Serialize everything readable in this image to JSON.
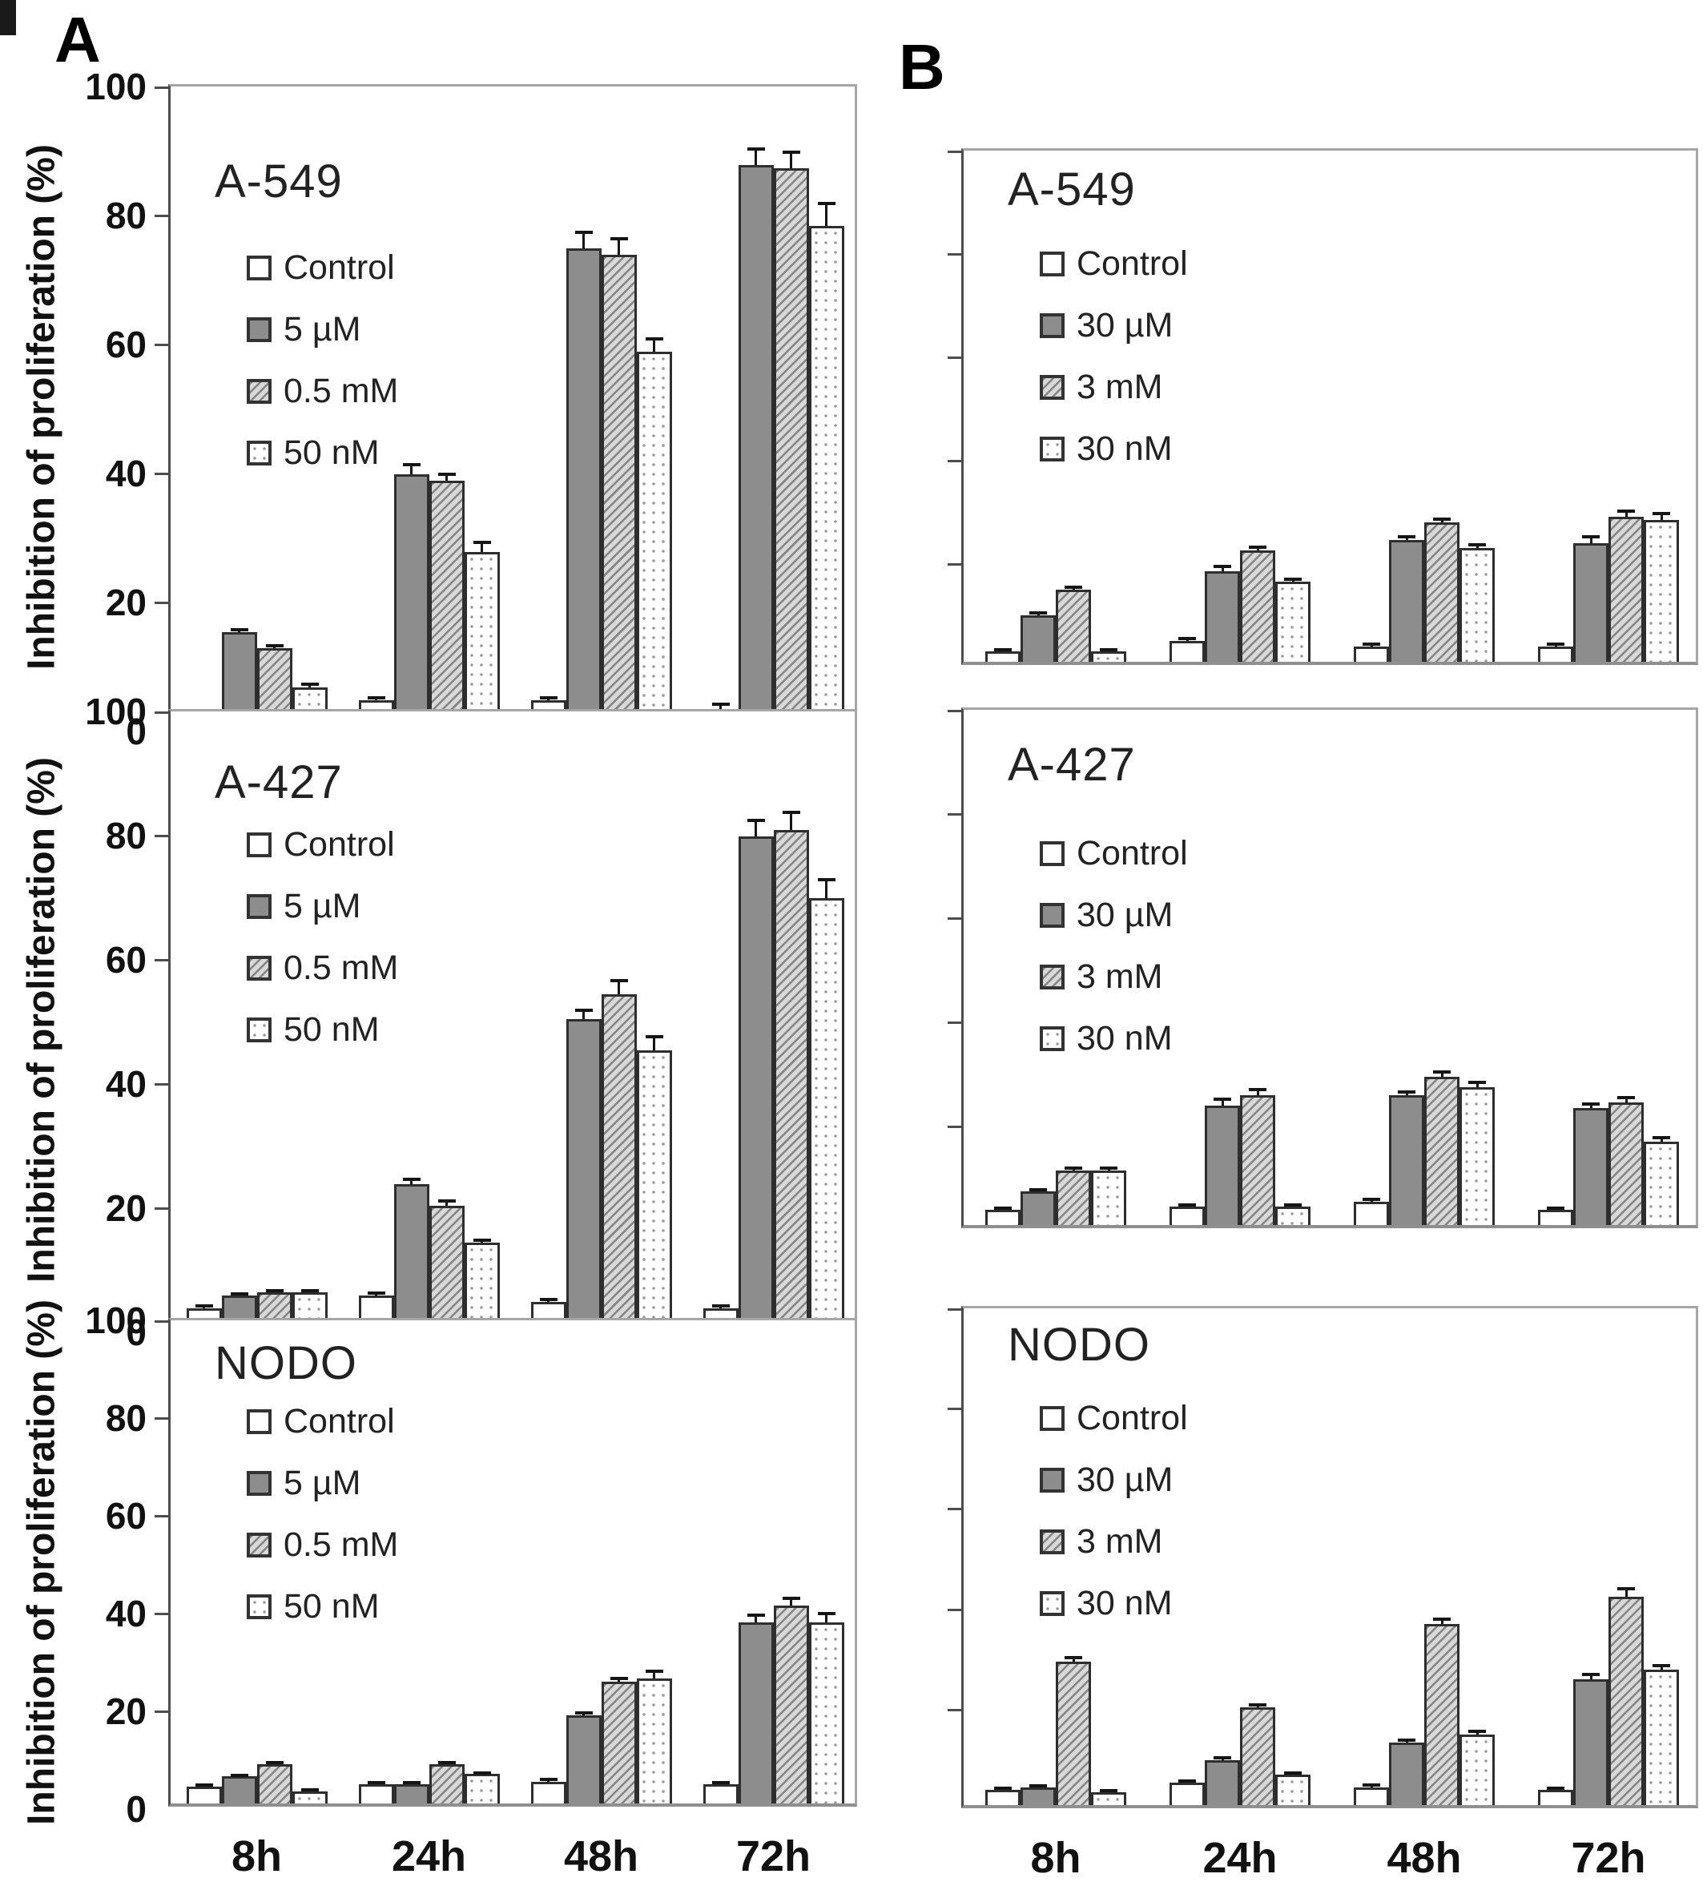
{
  "figure": {
    "panel_a_label": "A",
    "panel_b_label": "B",
    "y_axis_title": "Inhibition of proliferation (%)",
    "y_tick_labels": [
      "100",
      "80",
      "60",
      "40",
      "20",
      "0"
    ],
    "x_categories": [
      "8h",
      "24h",
      "48h",
      "72h"
    ]
  },
  "colors": {
    "bar_dark": "#8d8d8d",
    "bar_hatch_fg": "#848484",
    "bar_hatch_bg": "#d8d8d8",
    "bar_white": "#ffffff",
    "bar_border": "#2e2e2e",
    "axis_dark": "#4d4d4d",
    "axis_light": "#a6a6a6",
    "error_bar": "#151515",
    "text": "#111111"
  },
  "chart_data": [
    {
      "id": "a549-A",
      "panel": "A",
      "title": "A-549",
      "type": "bar",
      "x_categories": [
        "8h",
        "24h",
        "48h",
        "72h"
      ],
      "ylabel": "Inhibition of proliferation (%)",
      "ylim": [
        0,
        100
      ],
      "legend_position": "inside-top-left",
      "grid": false,
      "series": [
        {
          "name": "Control",
          "pattern": "white",
          "values": [
            2,
            4,
            4,
            2.5
          ],
          "errors": [
            0.4,
            0.4,
            0.4,
            0.8
          ]
        },
        {
          "name": "5 µM",
          "pattern": "dark",
          "values": [
            14.5,
            39,
            74,
            87
          ],
          "errors": [
            0.4,
            1.5,
            2.5,
            2.5
          ]
        },
        {
          "name": "0.5 mM",
          "pattern": "hatch",
          "values": [
            12,
            38,
            73,
            86.5
          ],
          "errors": [
            0.4,
            1,
            2.5,
            2.5
          ]
        },
        {
          "name": "50 nM",
          "pattern": "dots",
          "values": [
            6,
            27,
            58,
            77.5
          ],
          "errors": [
            0.5,
            1.5,
            2,
            3.5
          ]
        }
      ]
    },
    {
      "id": "a549-B",
      "panel": "B",
      "title": "A-549",
      "type": "bar",
      "x_categories": [
        "8h",
        "24h",
        "48h",
        "72h"
      ],
      "ylabel": "Inhibition of proliferation (%)",
      "ylim": [
        0,
        100
      ],
      "legend_position": "inside-top-left",
      "grid": false,
      "series": [
        {
          "name": "Control",
          "pattern": "white",
          "values": [
            2,
            4,
            3,
            3
          ],
          "errors": [
            0.3,
            0.5,
            0.4,
            0.4
          ]
        },
        {
          "name": "30 µM",
          "pattern": "dark",
          "values": [
            9,
            17.5,
            23.5,
            23
          ],
          "errors": [
            0.4,
            1,
            0.7,
            1.2
          ]
        },
        {
          "name": "3 mM",
          "pattern": "hatch",
          "values": [
            14,
            21.5,
            27,
            28
          ],
          "errors": [
            0.4,
            0.7,
            0.6,
            1.2
          ]
        },
        {
          "name": "30 nM",
          "pattern": "dots",
          "values": [
            2,
            15.5,
            22,
            27.5
          ],
          "errors": [
            0.3,
            0.5,
            0.7,
            1.2
          ]
        }
      ]
    },
    {
      "id": "a427-A",
      "panel": "A",
      "title": "A-427",
      "type": "bar",
      "x_categories": [
        "8h",
        "24h",
        "48h",
        "72h"
      ],
      "ylabel": "Inhibition of proliferation (%)",
      "ylim": [
        0,
        100
      ],
      "legend_position": "inside-top-left",
      "grid": false,
      "series": [
        {
          "name": "Control",
          "pattern": "white",
          "values": [
            3,
            5,
            4,
            3
          ],
          "errors": [
            0.3,
            0.4,
            0.4,
            0.3
          ]
        },
        {
          "name": "5 µM",
          "pattern": "dark",
          "values": [
            5,
            23,
            49.5,
            79
          ],
          "errors": [
            0.3,
            0.8,
            1.5,
            2.5
          ]
        },
        {
          "name": "0.5 mM",
          "pattern": "hatch",
          "values": [
            5.5,
            19.5,
            53.5,
            80
          ],
          "errors": [
            0.3,
            0.7,
            2.2,
            2.8
          ]
        },
        {
          "name": "50 nM",
          "pattern": "dots",
          "values": [
            5.5,
            13.5,
            44.5,
            69
          ],
          "errors": [
            0.3,
            0.5,
            2.2,
            3
          ]
        }
      ]
    },
    {
      "id": "a427-B",
      "panel": "B",
      "title": "A-427",
      "type": "bar",
      "x_categories": [
        "8h",
        "24h",
        "48h",
        "72h"
      ],
      "ylabel": "Inhibition of proliferation (%)",
      "ylim": [
        0,
        100
      ],
      "legend_position": "inside-top-left",
      "grid": false,
      "series": [
        {
          "name": "Control",
          "pattern": "white",
          "values": [
            3,
            3.5,
            4.5,
            3
          ],
          "errors": [
            0.3,
            0.3,
            0.4,
            0.3
          ]
        },
        {
          "name": "30 µM",
          "pattern": "dark",
          "values": [
            6.5,
            23,
            25,
            22.5
          ],
          "errors": [
            0.3,
            1.2,
            0.6,
            0.7
          ]
        },
        {
          "name": "3 mM",
          "pattern": "hatch",
          "values": [
            10.5,
            25,
            28.5,
            23.5
          ],
          "errors": [
            0.4,
            1,
            0.9,
            0.9
          ]
        },
        {
          "name": "30 nM",
          "pattern": "dots",
          "values": [
            10.5,
            3.5,
            26.5,
            16
          ],
          "errors": [
            0.4,
            0.3,
            0.9,
            0.7
          ]
        }
      ]
    },
    {
      "id": "nodo-A",
      "panel": "A",
      "title": "NODO",
      "type": "bar",
      "x_categories": [
        "8h",
        "24h",
        "48h",
        "72h"
      ],
      "ylabel": "Inhibition of proliferation (%)",
      "ylim": [
        0,
        100
      ],
      "legend_position": "inside-top-left",
      "grid": false,
      "series": [
        {
          "name": "Control",
          "pattern": "white",
          "values": [
            3.5,
            4,
            4.5,
            4
          ],
          "errors": [
            0.3,
            0.3,
            0.4,
            0.3
          ]
        },
        {
          "name": "5 µM",
          "pattern": "dark",
          "values": [
            5.5,
            4,
            18,
            37
          ],
          "errors": [
            0.3,
            0.3,
            0.5,
            1.5
          ]
        },
        {
          "name": "0.5 mM",
          "pattern": "hatch",
          "values": [
            8,
            8,
            25,
            40.5
          ],
          "errors": [
            0.3,
            0.3,
            0.5,
            1.5
          ]
        },
        {
          "name": "50 nM",
          "pattern": "dots",
          "values": [
            2.5,
            6,
            25.5,
            37
          ],
          "errors": [
            0.3,
            0.3,
            1.5,
            1.8
          ]
        }
      ]
    },
    {
      "id": "nodo-B",
      "panel": "B",
      "title": "NODO",
      "type": "bar",
      "x_categories": [
        "8h",
        "24h",
        "48h",
        "72h"
      ],
      "ylabel": "Inhibition of proliferation (%)",
      "ylim": [
        0,
        100
      ],
      "legend_position": "inside-top-left",
      "grid": false,
      "series": [
        {
          "name": "Control",
          "pattern": "white",
          "values": [
            3,
            4.5,
            3.5,
            3
          ],
          "errors": [
            0.3,
            0.3,
            0.5,
            0.3
          ]
        },
        {
          "name": "30 µM",
          "pattern": "dark",
          "values": [
            3.5,
            9,
            12.5,
            25
          ],
          "errors": [
            0.3,
            0.4,
            0.5,
            1
          ]
        },
        {
          "name": "3 mM",
          "pattern": "hatch",
          "values": [
            28.5,
            19.5,
            36,
            41.5
          ],
          "errors": [
            0.9,
            0.5,
            1,
            1.5
          ]
        },
        {
          "name": "30 nM",
          "pattern": "dots",
          "values": [
            2.5,
            6,
            14,
            27
          ],
          "errors": [
            0.3,
            0.4,
            0.6,
            0.8
          ]
        }
      ]
    }
  ]
}
